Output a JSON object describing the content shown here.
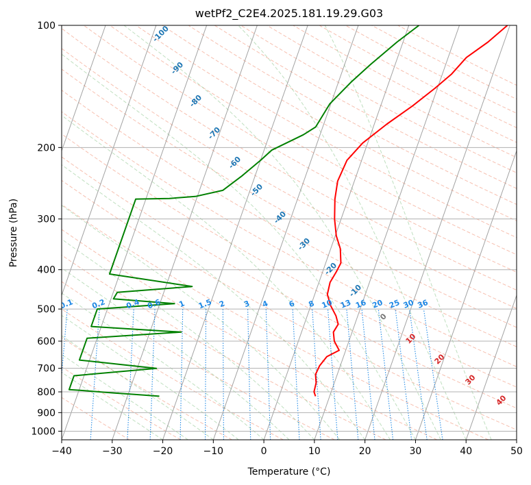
{
  "chart_data": {
    "type": "line",
    "subtype": "skew-t log-p",
    "title": "wetPf2_C2E4.2025.181.19.29.G03",
    "xlabel": "Temperature (°C)",
    "ylabel": "Pressure (hPa)",
    "xlim": [
      -40,
      50
    ],
    "ylim": [
      1050,
      100
    ],
    "y_scale": "log",
    "grid": true,
    "x_ticks": [
      -40,
      -30,
      -20,
      -10,
      0,
      10,
      20,
      30,
      40,
      50
    ],
    "x_tick_labels": [
      "−40",
      "−30",
      "−20",
      "−10",
      "0",
      "10",
      "20",
      "30",
      "40",
      "50"
    ],
    "y_ticks": [
      1000,
      900,
      800,
      700,
      600,
      500,
      400,
      300,
      200,
      100
    ],
    "y_tick_labels": [
      "1000",
      "900",
      "800",
      "700",
      "600",
      "500",
      "400",
      "300",
      "200",
      "100"
    ],
    "background_lines": {
      "isotherms": {
        "color": "#8c8c8c",
        "style": "solid",
        "label_color": "#1f77b4",
        "labels": [
          {
            "value": -100,
            "text": "-100"
          },
          {
            "value": -90,
            "text": "-90"
          },
          {
            "value": -80,
            "text": "-80"
          },
          {
            "value": -70,
            "text": "-70"
          },
          {
            "value": -60,
            "text": "-60"
          },
          {
            "value": -50,
            "text": "-50"
          },
          {
            "value": -40,
            "text": "-40"
          },
          {
            "value": -30,
            "text": "-30"
          },
          {
            "value": -20,
            "text": "-20"
          },
          {
            "value": -10,
            "text": "-10"
          },
          {
            "value": 0,
            "text": "0"
          },
          {
            "value": 10,
            "text": "10"
          },
          {
            "value": 20,
            "text": "20"
          },
          {
            "value": 30,
            "text": "30"
          },
          {
            "value": 40,
            "text": "40"
          }
        ]
      },
      "dry_adiabats": {
        "color": "#f08060",
        "style": "dashed"
      },
      "moist_adiabats": {
        "color": "#80c080",
        "style": "dashed"
      },
      "mixing_ratio": {
        "color": "#1e88e5",
        "style": "dotted",
        "labels": [
          "0.1",
          "0.2",
          "0.4",
          "0.6",
          "1",
          "1.5",
          "2",
          "3",
          "4",
          "6",
          "8",
          "10",
          "13",
          "16",
          "20",
          "25",
          "30",
          "36"
        ],
        "values": [
          0.1,
          0.2,
          0.4,
          0.6,
          1,
          1.5,
          2,
          3,
          4,
          6,
          8,
          10,
          13,
          16,
          20,
          25,
          30,
          36
        ]
      }
    },
    "series": [
      {
        "color": "#ff0000",
        "points": [
          [
            7.2,
            820
          ],
          [
            6.6,
            800
          ],
          [
            6.4,
            760
          ],
          [
            5.7,
            725
          ],
          [
            5.9,
            690
          ],
          [
            6.7,
            655
          ],
          [
            8.7,
            632
          ],
          [
            7.1,
            600
          ],
          [
            6.3,
            570
          ],
          [
            6.7,
            545
          ],
          [
            5.7,
            520
          ],
          [
            3.9,
            490
          ],
          [
            2.5,
            460
          ],
          [
            2.2,
            430
          ],
          [
            2.7,
            405
          ],
          [
            3.0,
            385
          ],
          [
            1.9,
            355
          ],
          [
            0.2,
            330
          ],
          [
            -1.3,
            300
          ],
          [
            -2.6,
            268
          ],
          [
            -3.3,
            242
          ],
          [
            -2.9,
            215
          ],
          [
            -1.0,
            195
          ],
          [
            2.5,
            175
          ],
          [
            6.3,
            158
          ],
          [
            9.5,
            143
          ],
          [
            11.8,
            132
          ],
          [
            13.6,
            120
          ],
          [
            16.8,
            110
          ],
          [
            19.5,
            100
          ]
        ]
      },
      {
        "color": "#008000",
        "points": [
          [
            -23.7,
            820
          ],
          [
            -28.5,
            812
          ],
          [
            -33,
            805
          ],
          [
            -39.8,
            793
          ],
          [
            -42,
            790
          ],
          [
            -42,
            730
          ],
          [
            -26.2,
            700
          ],
          [
            -42,
            668
          ],
          [
            -42,
            590
          ],
          [
            -23.8,
            570
          ],
          [
            -42,
            552
          ],
          [
            -42,
            500
          ],
          [
            -27.1,
            485
          ],
          [
            -39.5,
            472
          ],
          [
            -39.2,
            455
          ],
          [
            -24.8,
            440
          ],
          [
            -42,
            410
          ],
          [
            -42,
            268
          ],
          [
            -35.4,
            267
          ],
          [
            -30.4,
            264
          ],
          [
            -25.4,
            255
          ],
          [
            -22.6,
            235
          ],
          [
            -20.0,
            215
          ],
          [
            -18.5,
            203
          ],
          [
            -13.3,
            186
          ],
          [
            -11.4,
            178
          ],
          [
            -10.2,
            156
          ],
          [
            -7.5,
            138
          ],
          [
            -4.9,
            125
          ],
          [
            -1.2,
            110
          ],
          [
            2.0,
            100
          ]
        ]
      }
    ]
  }
}
